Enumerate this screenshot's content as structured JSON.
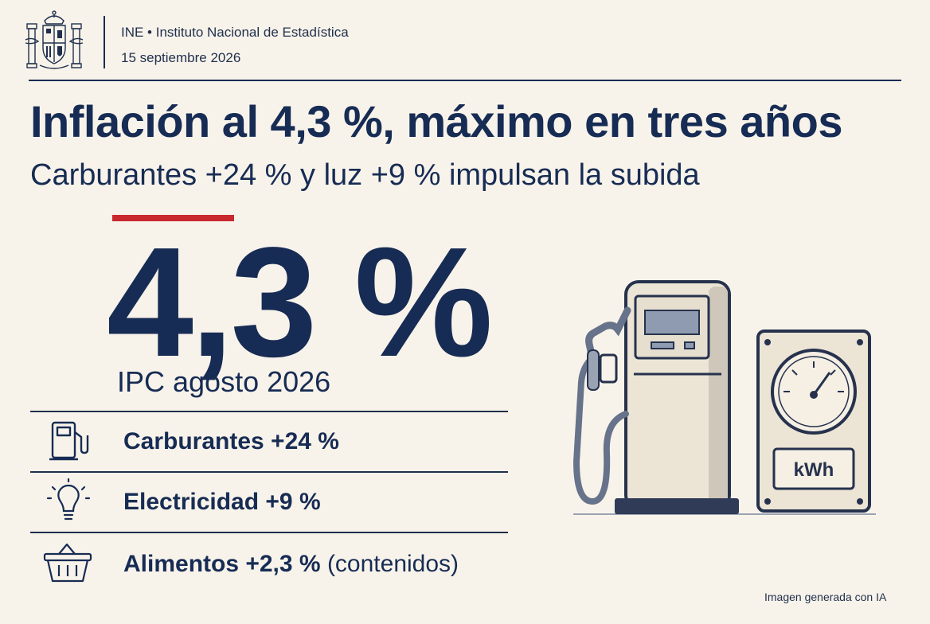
{
  "header": {
    "organization": "INE • Instituto Nacional de Estadística",
    "date": "15 septiembre 2026"
  },
  "headline": "Inflación al 4,3 %, máximo en tres años",
  "subheadline": "Carburantes +24 % y luz +9 % impulsan la subida",
  "key_figure": {
    "value": "4,3 %",
    "label": "IPC agosto 2026"
  },
  "breakdown": [
    {
      "icon": "fuel-pump-icon",
      "label": "Carburantes +24 %",
      "note": ""
    },
    {
      "icon": "lightbulb-icon",
      "label": "Electricidad +9 %",
      "note": ""
    },
    {
      "icon": "shopping-basket-icon",
      "label": "Alimentos +2,3 %",
      "note": "(contenidos)"
    }
  ],
  "illustration": {
    "meter_unit": "kWh"
  },
  "footer": "Imagen generada con IA",
  "colors": {
    "background": "#f8f3ea",
    "navy": "#172c54",
    "accent_red": "#c9282f"
  }
}
